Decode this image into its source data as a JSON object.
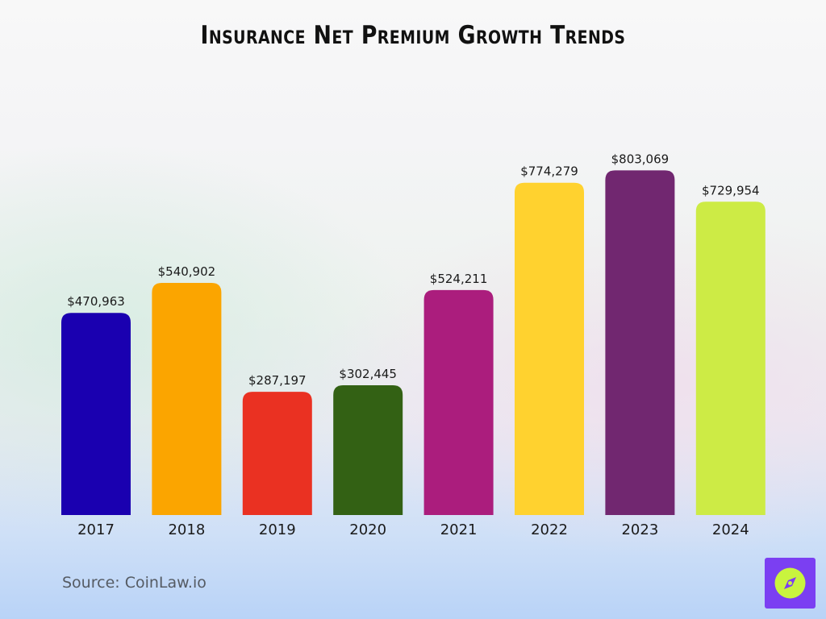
{
  "title": "Insurance Net Premium Growth Trends",
  "source": "Source: CoinLaw.io",
  "logo_icon": "compass-icon",
  "colors": {
    "logo_bg": "#7b3ff2",
    "logo_circle": "#c9f43e"
  },
  "chart_data": {
    "type": "bar",
    "title": "Insurance Net Premium Growth Trends",
    "xlabel": "",
    "ylabel": "",
    "ylim": [
      0,
      1000000
    ],
    "grid": false,
    "categories": [
      "2017",
      "2018",
      "2019",
      "2020",
      "2021",
      "2022",
      "2023",
      "2024"
    ],
    "values": [
      470963,
      540902,
      287197,
      302445,
      524211,
      774279,
      803069,
      729954
    ],
    "value_labels": [
      "$470,963",
      "$540,902",
      "$287,197",
      "$302,445",
      "$524,211",
      "$774,279",
      "$803,069",
      "$729,954"
    ],
    "colors": [
      "#1a00b0",
      "#fba500",
      "#ea3122",
      "#336114",
      "#ab1d7d",
      "#ffd22f",
      "#712770",
      "#cdeb45"
    ]
  }
}
